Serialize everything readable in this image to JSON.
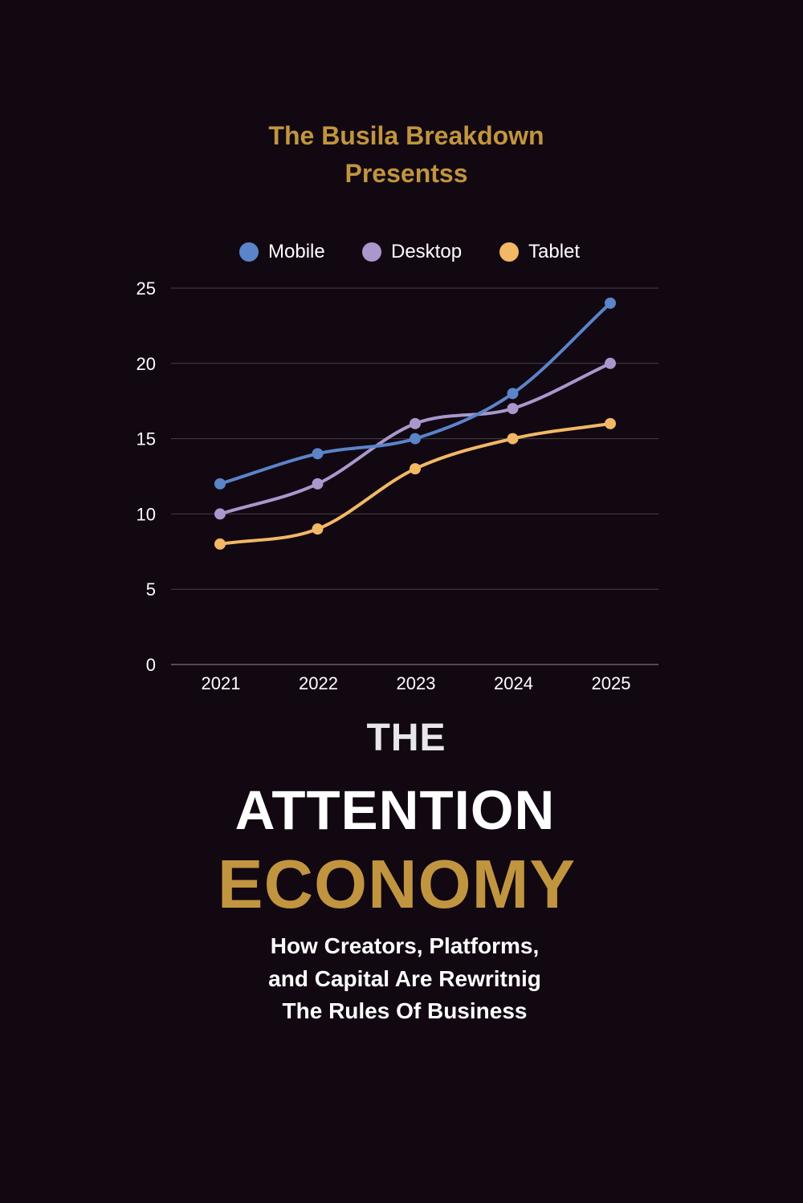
{
  "cover": {
    "presenter_line_1": "The Busila Breakdown",
    "presenter_line_2": "Presentss",
    "title_the": "THE",
    "title_attention": "ATTENTION",
    "title_economy": "ECONOMY",
    "subtitle_line_1": "How Creators, Platforms,",
    "subtitle_line_2": "and Capital Are Rewritnig",
    "subtitle_line_3": "The Rules Of Business"
  },
  "colors": {
    "background": "#120812",
    "accent_gold": "#c1953f",
    "mobile": "#5b84c9",
    "desktop": "#a898cc",
    "tablet": "#f2b866",
    "grid": "#4a3f4c",
    "text": "#ffffff"
  },
  "chart_data": {
    "type": "line",
    "x": [
      "2021",
      "2022",
      "2023",
      "2024",
      "2025"
    ],
    "yticks": [
      "0",
      "5",
      "10",
      "15",
      "20",
      "25"
    ],
    "ylim": [
      0,
      25
    ],
    "grid": true,
    "legend_position": "top",
    "series": [
      {
        "name": "Mobile",
        "color": "#5b84c9",
        "values": [
          12,
          14,
          15,
          18,
          24
        ]
      },
      {
        "name": "Desktop",
        "color": "#a898cc",
        "values": [
          10,
          12,
          16,
          17,
          20
        ]
      },
      {
        "name": "Tablet",
        "color": "#f2b866",
        "values": [
          8,
          9,
          13,
          15,
          16
        ]
      }
    ]
  }
}
